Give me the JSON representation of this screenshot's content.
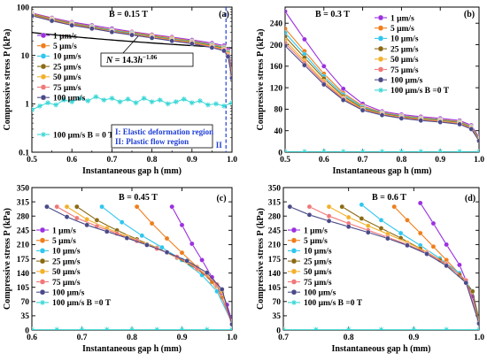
{
  "colors": {
    "1 μm/s": "#9b30e0",
    "5 μm/s": "#f07d1a",
    "10 μm/s": "#2fc6ee",
    "25 μm/s": "#8b6a14",
    "50 μm/s": "#f3b02c",
    "75 μm/s": "#f07878",
    "100 μm/s": "#4a4a88",
    "B = 0 T": "#35d6d6",
    "fit": "#000000",
    "divider": "#1f3ed6"
  },
  "chart_data": [
    {
      "type": "line",
      "panel_label": "(a)",
      "title": "B = 0.15 T",
      "xlabel": "Instantaneous gap h (mm)",
      "ylabel": "Compressive stress P (kPa)",
      "yscale": "log",
      "xlim": [
        0.5,
        1.0
      ],
      "ylim": [
        0.1,
        100
      ],
      "xticks": [
        0.5,
        0.6,
        0.7,
        0.8,
        0.9,
        1.0
      ],
      "xtick_labels": [
        "0.5",
        "0.6",
        "0.7",
        "0.8",
        "0.9",
        "1.0"
      ],
      "yticks": [
        0.1,
        1,
        10,
        100
      ],
      "ytick_labels": [
        "0.1",
        "1",
        "10",
        "100"
      ],
      "legend_position": "left",
      "fit_label": "N = 14.3h^-1.06",
      "fit_label_parts": {
        "lhs": "N",
        "eq": " =  14.3",
        "var": "h",
        "exp": "−1.06"
      },
      "fit_curve": {
        "a": 14.3,
        "b": -1.06
      },
      "divider_x": 0.985,
      "region_marker": "II",
      "region_notes": [
        "I: Elastic deformation region",
        "II: Plastic flow region"
      ],
      "series": [
        {
          "name": "1 μm/s",
          "x": [
            0.5,
            0.55,
            0.6,
            0.65,
            0.7,
            0.75,
            0.8,
            0.85,
            0.9,
            0.95,
            0.98,
            0.99,
            1.0
          ],
          "y": [
            75,
            60,
            49,
            42,
            36,
            31,
            27,
            24,
            21,
            18,
            16,
            13,
            5
          ]
        },
        {
          "name": "5 μm/s",
          "x": [
            0.5,
            0.55,
            0.6,
            0.65,
            0.7,
            0.75,
            0.8,
            0.85,
            0.9,
            0.95,
            0.98,
            0.99,
            1.0
          ],
          "y": [
            73,
            58,
            47,
            40,
            34,
            30,
            26,
            23,
            20,
            17,
            15,
            12,
            4.5
          ]
        },
        {
          "name": "10 μm/s",
          "x": [
            0.5,
            0.55,
            0.6,
            0.65,
            0.7,
            0.75,
            0.8,
            0.85,
            0.9,
            0.95,
            0.98,
            0.99,
            1.0
          ],
          "y": [
            71,
            56,
            46,
            39,
            33,
            29,
            25,
            22,
            19.5,
            16.5,
            14.5,
            11.5,
            4.2
          ]
        },
        {
          "name": "25 μm/s",
          "x": [
            0.5,
            0.55,
            0.6,
            0.65,
            0.7,
            0.75,
            0.8,
            0.85,
            0.9,
            0.95,
            0.98,
            0.99,
            1.0
          ],
          "y": [
            70,
            55,
            45,
            38,
            32,
            28,
            24.5,
            21.5,
            19,
            16,
            14,
            11,
            4
          ]
        },
        {
          "name": "50 μm/s",
          "x": [
            0.5,
            0.55,
            0.6,
            0.65,
            0.7,
            0.75,
            0.8,
            0.85,
            0.9,
            0.95,
            0.98,
            0.99,
            1.0
          ],
          "y": [
            68,
            54,
            44,
            37,
            31.5,
            27.5,
            24,
            21,
            18.5,
            15.5,
            13.5,
            10.5,
            3.8
          ]
        },
        {
          "name": "75 μm/s",
          "x": [
            0.5,
            0.55,
            0.6,
            0.65,
            0.7,
            0.75,
            0.8,
            0.85,
            0.9,
            0.95,
            0.98,
            0.99,
            1.0
          ],
          "y": [
            67,
            53,
            43,
            36.5,
            31,
            27,
            23.5,
            20.5,
            18,
            15,
            13,
            10,
            3.6
          ]
        },
        {
          "name": "100 μm/s",
          "x": [
            0.5,
            0.55,
            0.6,
            0.65,
            0.7,
            0.75,
            0.8,
            0.85,
            0.9,
            0.95,
            0.98,
            0.99,
            1.0
          ],
          "y": [
            66,
            52,
            42,
            36,
            30.5,
            26.5,
            23,
            20,
            17.5,
            14.5,
            12.5,
            9.5,
            3.4
          ]
        },
        {
          "name": "100 μm/s B = 0 T",
          "x": [
            0.5,
            0.52,
            0.54,
            0.56,
            0.58,
            0.6,
            0.62,
            0.64,
            0.66,
            0.68,
            0.7,
            0.72,
            0.74,
            0.76,
            0.78,
            0.8,
            0.82,
            0.84,
            0.86,
            0.88,
            0.9,
            0.92,
            0.94,
            0.96,
            0.98,
            1.0
          ],
          "y": [
            0.75,
            0.9,
            1.05,
            0.95,
            1.2,
            1.1,
            1.3,
            1.15,
            1.4,
            1.2,
            1.3,
            1.1,
            1.25,
            1.05,
            1.3,
            1.1,
            1.2,
            1.0,
            1.1,
            1.25,
            1.05,
            1.15,
            0.95,
            1.0,
            0.9,
            1.05
          ]
        }
      ]
    },
    {
      "type": "line",
      "panel_label": "(b)",
      "title": "B = 0.3 T",
      "xlabel": "Instantaneous gap h (mm)",
      "ylabel": "Compressive stress P (kPa)",
      "xlim": [
        0.5,
        1.0
      ],
      "ylim": [
        0,
        270
      ],
      "xticks": [
        0.5,
        0.6,
        0.7,
        0.8,
        0.9,
        1.0
      ],
      "xtick_labels": [
        "0.5",
        "0.6",
        "0.7",
        "0.8",
        "0.9",
        "1.0"
      ],
      "yticks": [
        0,
        40,
        80,
        120,
        160,
        200,
        240
      ],
      "ytick_labels": [
        "0",
        "40",
        "80",
        "120",
        "160",
        "200",
        "240"
      ],
      "legend_position": "right",
      "series": [
        {
          "name": "1 μm/s",
          "x": [
            0.5,
            0.55,
            0.6,
            0.65,
            0.7,
            0.75,
            0.8,
            0.85,
            0.9,
            0.95,
            0.98,
            1.0
          ],
          "y": [
            262,
            210,
            160,
            118,
            90,
            76,
            70,
            66,
            63,
            59,
            50,
            28
          ]
        },
        {
          "name": "5 μm/s",
          "x": [
            0.5,
            0.55,
            0.6,
            0.65,
            0.7,
            0.75,
            0.8,
            0.85,
            0.9,
            0.95,
            0.98,
            1.0
          ],
          "y": [
            230,
            188,
            146,
            110,
            86,
            74,
            68,
            64,
            61,
            57,
            48,
            26
          ]
        },
        {
          "name": "10 μm/s",
          "x": [
            0.5,
            0.55,
            0.6,
            0.65,
            0.7,
            0.75,
            0.8,
            0.85,
            0.9,
            0.95,
            0.98,
            1.0
          ],
          "y": [
            222,
            182,
            141,
            107,
            84,
            73,
            67,
            63,
            60,
            56,
            47,
            25
          ]
        },
        {
          "name": "25 μm/s",
          "x": [
            0.5,
            0.55,
            0.6,
            0.65,
            0.7,
            0.75,
            0.8,
            0.85,
            0.9,
            0.95,
            0.98,
            1.0
          ],
          "y": [
            215,
            176,
            137,
            104,
            82,
            72,
            66,
            62,
            59,
            55,
            46,
            24
          ]
        },
        {
          "name": "50 μm/s",
          "x": [
            0.5,
            0.55,
            0.6,
            0.65,
            0.7,
            0.75,
            0.8,
            0.85,
            0.9,
            0.95,
            0.98,
            1.0
          ],
          "y": [
            208,
            170,
            132,
            101,
            80,
            71,
            65,
            61,
            58,
            54,
            45,
            23
          ]
        },
        {
          "name": "75 μm/s",
          "x": [
            0.5,
            0.55,
            0.6,
            0.65,
            0.7,
            0.75,
            0.8,
            0.85,
            0.9,
            0.95,
            0.98,
            1.0
          ],
          "y": [
            203,
            166,
            129,
            99,
            79,
            70,
            64,
            60,
            57,
            53,
            44,
            22
          ]
        },
        {
          "name": "100 μm/s",
          "x": [
            0.5,
            0.55,
            0.6,
            0.65,
            0.7,
            0.75,
            0.8,
            0.85,
            0.9,
            0.95,
            0.98,
            1.0
          ],
          "y": [
            198,
            162,
            126,
            97,
            78,
            69,
            63,
            59,
            56,
            52,
            43,
            21
          ]
        },
        {
          "name": "100 μm/s B =0 T",
          "x": [
            0.5,
            0.55,
            0.6,
            0.65,
            0.7,
            0.75,
            0.8,
            0.85,
            0.9,
            0.95,
            1.0
          ],
          "y": [
            1,
            1,
            1,
            1,
            1,
            1,
            1,
            1,
            1,
            1,
            1
          ]
        }
      ]
    },
    {
      "type": "line",
      "panel_label": "(c)",
      "title": "B = 0.45 T",
      "xlabel": "Instantaneous gap h (mm)",
      "ylabel": "Compressive stress P (kPa)",
      "xlim": [
        0.6,
        1.0
      ],
      "ylim": [
        0,
        350
      ],
      "xticks": [
        0.6,
        0.7,
        0.8,
        0.9,
        1.0
      ],
      "xtick_labels": [
        "0.6",
        "0.7",
        "0.8",
        "0.9",
        "1.0"
      ],
      "yticks": [
        0,
        35,
        70,
        105,
        140,
        175,
        210,
        245,
        280,
        315,
        350
      ],
      "ytick_labels": [
        "0",
        "35",
        "70",
        "105",
        "140",
        "175",
        "210",
        "245",
        "280",
        "315",
        "350"
      ],
      "legend_position": "left",
      "series": [
        {
          "name": "1 μm/s",
          "x": [
            0.88,
            0.9,
            0.92,
            0.94,
            0.96,
            0.98,
            0.99,
            1.0
          ],
          "y": [
            303,
            258,
            212,
            172,
            130,
            92,
            62,
            22
          ]
        },
        {
          "name": "5 μm/s",
          "x": [
            0.81,
            0.84,
            0.87,
            0.9,
            0.93,
            0.96,
            0.98,
            1.0
          ],
          "y": [
            303,
            262,
            225,
            190,
            155,
            118,
            80,
            20
          ]
        },
        {
          "name": "10 μm/s",
          "x": [
            0.74,
            0.78,
            0.82,
            0.86,
            0.9,
            0.94,
            0.97,
            1.0
          ],
          "y": [
            303,
            265,
            232,
            203,
            172,
            135,
            95,
            18
          ]
        },
        {
          "name": "25 μm/s",
          "x": [
            0.69,
            0.73,
            0.77,
            0.81,
            0.85,
            0.89,
            0.93,
            0.97,
            1.0
          ],
          "y": [
            303,
            270,
            245,
            223,
            202,
            178,
            150,
            110,
            17
          ]
        },
        {
          "name": "50 μm/s",
          "x": [
            0.67,
            0.71,
            0.75,
            0.79,
            0.83,
            0.87,
            0.91,
            0.95,
            0.98,
            1.0
          ],
          "y": [
            303,
            272,
            250,
            230,
            211,
            191,
            168,
            136,
            95,
            16
          ]
        },
        {
          "name": "75 μm/s",
          "x": [
            0.65,
            0.69,
            0.73,
            0.77,
            0.81,
            0.85,
            0.89,
            0.93,
            0.97,
            1.0
          ],
          "y": [
            303,
            275,
            255,
            237,
            219,
            200,
            180,
            152,
            112,
            15
          ]
        },
        {
          "name": "100 μm/s",
          "x": [
            0.63,
            0.67,
            0.71,
            0.75,
            0.79,
            0.83,
            0.87,
            0.91,
            0.95,
            0.98,
            1.0
          ],
          "y": [
            303,
            278,
            258,
            242,
            226,
            209,
            191,
            170,
            141,
            100,
            14
          ]
        },
        {
          "name": "100 μm/s B =0 T",
          "x": [
            0.6,
            0.65,
            0.7,
            0.75,
            0.8,
            0.85,
            0.9,
            0.95,
            1.0
          ],
          "y": [
            1,
            1,
            1,
            1,
            1,
            1,
            1,
            1,
            1
          ]
        }
      ]
    },
    {
      "type": "line",
      "panel_label": "(d)",
      "title": "B = 0.6 T",
      "xlabel": "Instantaneous gap h (mm)",
      "ylabel": "Compressive stress P (kPa)",
      "xlim": [
        0.7,
        1.0
      ],
      "ylim": [
        0,
        350
      ],
      "xticks": [
        0.7,
        0.8,
        0.9,
        1.0
      ],
      "xtick_labels": [
        "0.7",
        "0.8",
        "0.9",
        "1.0"
      ],
      "yticks": [
        0,
        35,
        70,
        105,
        140,
        175,
        210,
        245,
        280,
        315,
        350
      ],
      "ytick_labels": [
        "0",
        "35",
        "70",
        "105",
        "140",
        "175",
        "210",
        "245",
        "280",
        "315",
        "350"
      ],
      "legend_position": "left",
      "series": [
        {
          "name": "1 μm/s",
          "x": [
            0.91,
            0.93,
            0.95,
            0.97,
            0.98,
            0.99,
            1.0
          ],
          "y": [
            312,
            262,
            210,
            160,
            122,
            82,
            28
          ]
        },
        {
          "name": "5 μm/s",
          "x": [
            0.87,
            0.89,
            0.91,
            0.93,
            0.95,
            0.97,
            0.99,
            1.0
          ],
          "y": [
            303,
            270,
            238,
            205,
            172,
            138,
            95,
            26
          ]
        },
        {
          "name": "10 μm/s",
          "x": [
            0.82,
            0.85,
            0.88,
            0.91,
            0.94,
            0.97,
            0.99,
            1.0
          ],
          "y": [
            308,
            270,
            238,
            208,
            176,
            140,
            96,
            24
          ]
        },
        {
          "name": "25 μm/s",
          "x": [
            0.79,
            0.82,
            0.85,
            0.88,
            0.91,
            0.94,
            0.97,
            0.99,
            1.0
          ],
          "y": [
            303,
            274,
            250,
            226,
            200,
            172,
            136,
            95,
            22
          ]
        },
        {
          "name": "50 μm/s",
          "x": [
            0.77,
            0.8,
            0.83,
            0.86,
            0.89,
            0.92,
            0.95,
            0.98,
            1.0
          ],
          "y": [
            303,
            277,
            256,
            236,
            215,
            192,
            162,
            122,
            20
          ]
        },
        {
          "name": "75 μm/s",
          "x": [
            0.74,
            0.77,
            0.8,
            0.83,
            0.86,
            0.89,
            0.92,
            0.95,
            0.98,
            1.0
          ],
          "y": [
            303,
            280,
            262,
            245,
            228,
            210,
            190,
            162,
            122,
            18
          ]
        },
        {
          "name": "100 μm/s",
          "x": [
            0.71,
            0.74,
            0.77,
            0.8,
            0.83,
            0.86,
            0.89,
            0.92,
            0.95,
            0.98,
            1.0
          ],
          "y": [
            303,
            283,
            268,
            254,
            240,
            225,
            208,
            187,
            158,
            116,
            16
          ]
        },
        {
          "name": "100 μm/s B =0 T",
          "x": [
            0.7,
            0.75,
            0.8,
            0.85,
            0.9,
            0.95,
            1.0
          ],
          "y": [
            1,
            1,
            1,
            1,
            1,
            1,
            1
          ]
        }
      ]
    }
  ]
}
